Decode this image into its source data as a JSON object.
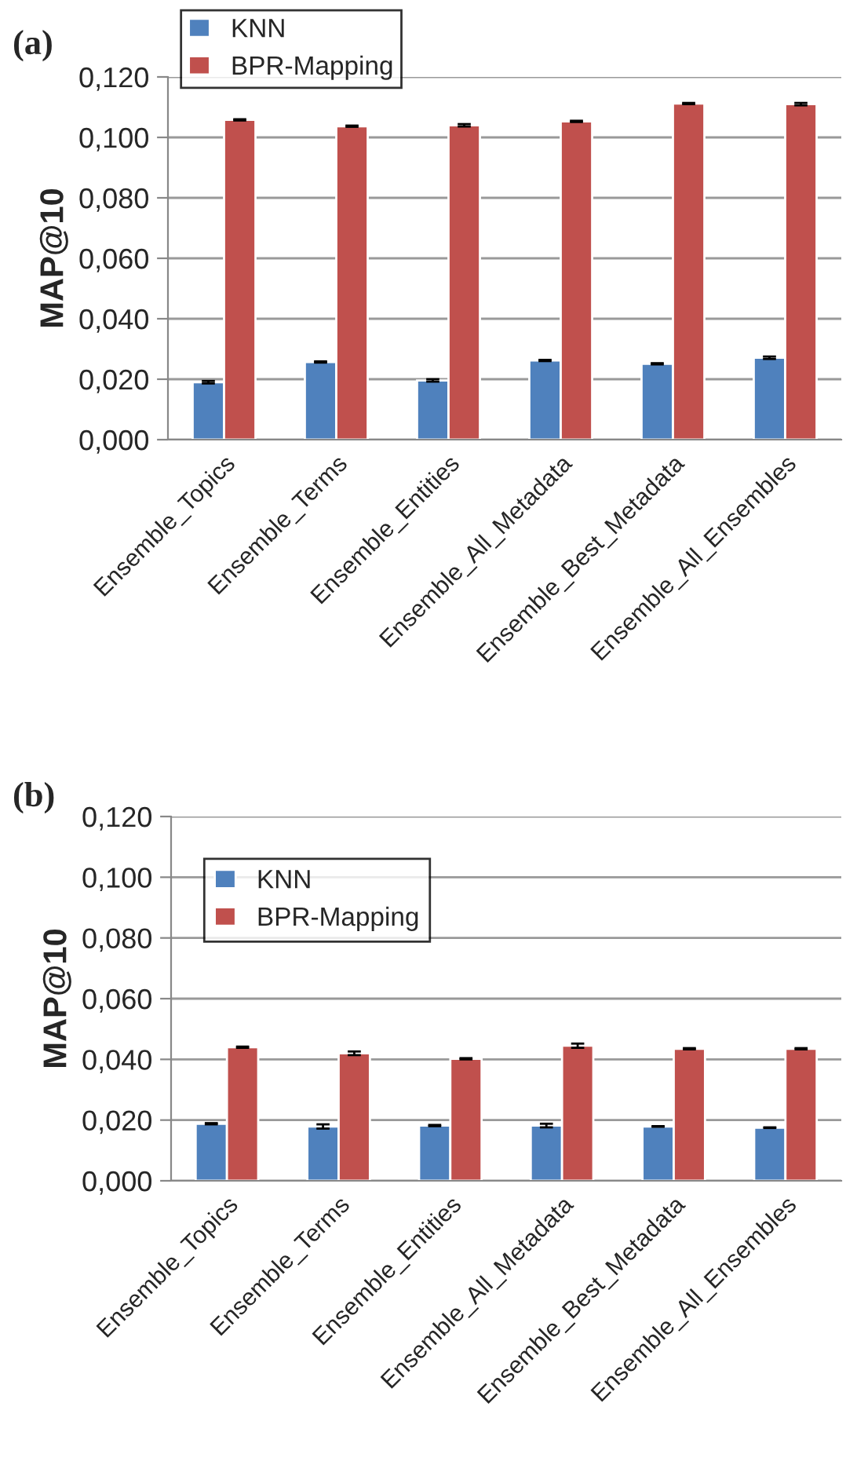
{
  "chart_data": [
    {
      "type": "bar",
      "title": "(a)",
      "ylabel": "MAP@10",
      "categories": [
        "Ensemble_Topics",
        "Ensemble_Terms",
        "Ensemble_Entities",
        "Ensemble_All_Metadata",
        "Ensemble_Best_Metadata",
        "Ensemble_All_Ensembles"
      ],
      "series": [
        {
          "name": "KNN",
          "color": "#4f81bd",
          "values": [
            0.019,
            0.0257,
            0.0196,
            0.0262,
            0.0251,
            0.0271
          ],
          "errors": [
            0.0004,
            0.0002,
            0.0004,
            0.0002,
            0.0002,
            0.0004
          ]
        },
        {
          "name": "BPR-Mapping",
          "color": "#c0504d",
          "values": [
            0.1058,
            0.1037,
            0.104,
            0.1053,
            0.1112,
            0.111
          ],
          "errors": [
            0.0002,
            0.0002,
            0.0004,
            0.0002,
            0.0002,
            0.0004
          ]
        }
      ],
      "ylim": [
        0,
        0.12
      ],
      "yticks": [
        {
          "value": 0,
          "label": "0,000"
        },
        {
          "value": 0.02,
          "label": "0,020"
        },
        {
          "value": 0.04,
          "label": "0,040"
        },
        {
          "value": 0.06,
          "label": "0,060"
        },
        {
          "value": 0.08,
          "label": "0,080"
        },
        {
          "value": 0.1,
          "label": "0,100"
        },
        {
          "value": 0.12,
          "label": "0,120"
        }
      ],
      "grid": "y",
      "legend": "top left"
    },
    {
      "type": "bar",
      "title": "(b)",
      "ylabel": "MAP@10",
      "categories": [
        "Ensemble_Topics",
        "Ensemble_Terms",
        "Ensemble_Entities",
        "Ensemble_All_Metadata",
        "Ensemble_Best_Metadata",
        "Ensemble_All_Ensembles"
      ],
      "series": [
        {
          "name": "KNN",
          "color": "#4f81bd",
          "values": [
            0.0188,
            0.0179,
            0.0182,
            0.0182,
            0.0179,
            0.0175
          ],
          "errors": [
            0.0002,
            0.0007,
            0.0002,
            0.0006,
            0.0001,
            0.0001
          ]
        },
        {
          "name": "BPR-Mapping",
          "color": "#c0504d",
          "values": [
            0.044,
            0.042,
            0.0402,
            0.0445,
            0.0435,
            0.0435
          ],
          "errors": [
            0.0002,
            0.0006,
            0.0002,
            0.0007,
            0.0002,
            0.0002
          ]
        }
      ],
      "ylim": [
        0,
        0.12
      ],
      "yticks": [
        {
          "value": 0,
          "label": "0,000"
        },
        {
          "value": 0.02,
          "label": "0,020"
        },
        {
          "value": 0.04,
          "label": "0,040"
        },
        {
          "value": 0.06,
          "label": "0,060"
        },
        {
          "value": 0.08,
          "label": "0,080"
        },
        {
          "value": 0.1,
          "label": "0,100"
        },
        {
          "value": 0.12,
          "label": "0,120"
        }
      ],
      "grid": "y",
      "legend": "top left"
    }
  ]
}
